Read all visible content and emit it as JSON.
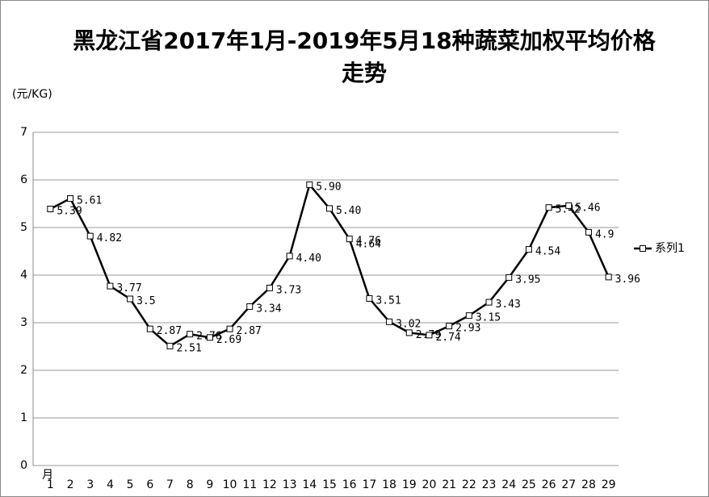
{
  "chart_data": {
    "type": "line",
    "title": "黑龙江省2017年1月-2019年5月18种蔬菜加权平均价格走势",
    "y_label": "(元/KG)",
    "x_label": "月",
    "categories": [
      "1",
      "2",
      "3",
      "4",
      "5",
      "6",
      "7",
      "8",
      "9",
      "10",
      "11",
      "12",
      "13",
      "14",
      "15",
      "16",
      "17",
      "18",
      "19",
      "20",
      "21",
      "22",
      "23",
      "24",
      "25",
      "26",
      "27",
      "28",
      "29"
    ],
    "series": [
      {
        "name": "系列1",
        "color": "#000000",
        "values": [
          5.39,
          5.61,
          4.82,
          3.77,
          3.5,
          2.87,
          2.51,
          2.76,
          2.69,
          2.87,
          3.34,
          3.73,
          4.4,
          5.9,
          5.4,
          4.76,
          3.51,
          3.02,
          2.79,
          2.74,
          2.93,
          3.15,
          3.43,
          3.95,
          4.54,
          5.42,
          5.46,
          4.9,
          3.96
        ],
        "value_labels": [
          "5.39",
          "5.61",
          "4.82",
          "3.77",
          "3.5",
          "2.87",
          "2.51",
          "2.76",
          "2.69",
          "2.87",
          "3.34",
          "3.73",
          "4.40",
          "5.90",
          "5.40",
          "4.76",
          "3.51",
          "3.02",
          "2.79",
          "2.74",
          "2.93",
          "3.15",
          "3.43",
          "3.95",
          "4.54",
          "5.42",
          "5.46",
          "4.9",
          "3.96"
        ]
      }
    ],
    "annotations": [
      {
        "text": "4.64",
        "x": "16",
        "y": 4.64
      }
    ],
    "ylim": [
      0,
      7
    ],
    "yticks": [
      0,
      1,
      2,
      3,
      4,
      5,
      6,
      7
    ],
    "grid": true,
    "legend": "right"
  }
}
